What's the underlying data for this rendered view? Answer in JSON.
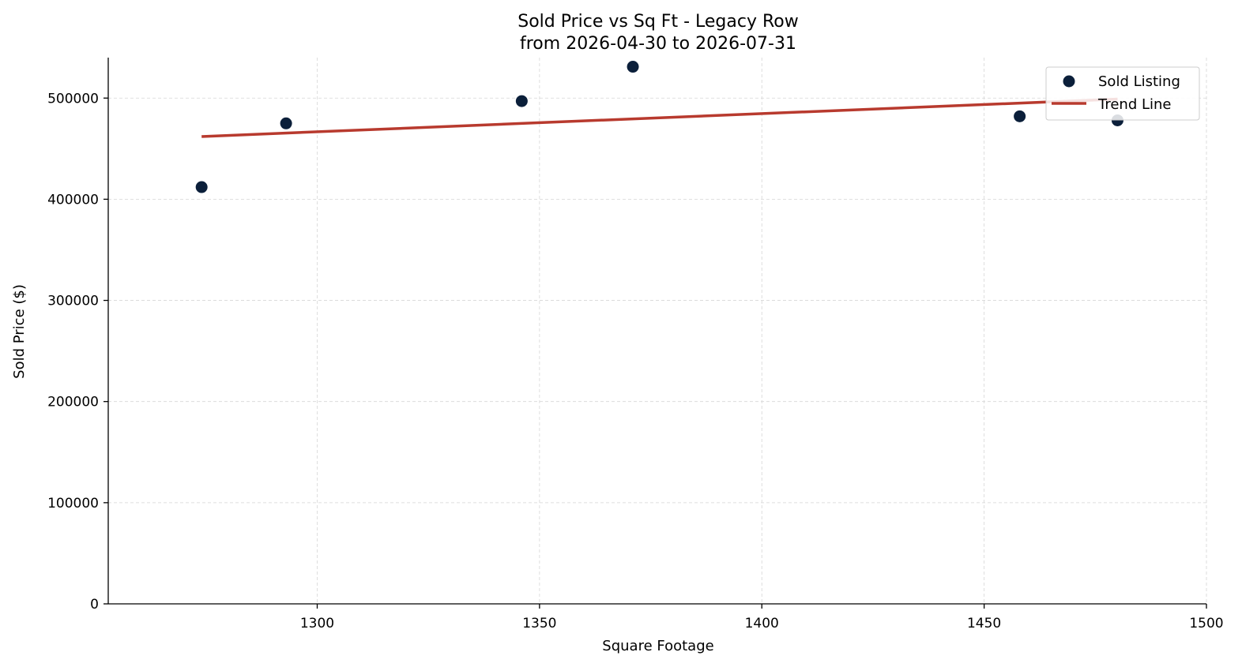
{
  "chart_data": {
    "type": "scatter",
    "title": "Sold Price vs Sq Ft - Legacy Row",
    "subtitle": "from 2026-04-30 to 2026-07-31",
    "xlabel": "Square Footage",
    "ylabel": "Sold Price ($)",
    "xlim": [
      1253,
      1500
    ],
    "ylim": [
      0,
      540000
    ],
    "xticks": [
      1300,
      1350,
      1400,
      1450,
      1500
    ],
    "yticks": [
      0,
      100000,
      200000,
      300000,
      400000,
      500000
    ],
    "grid": true,
    "legend_position": "top-right",
    "series": [
      {
        "name": "Sold Listing",
        "kind": "scatter",
        "color": "#0b1f3a",
        "points": [
          {
            "x": 1274,
            "y": 412000
          },
          {
            "x": 1293,
            "y": 475000
          },
          {
            "x": 1346,
            "y": 497000
          },
          {
            "x": 1371,
            "y": 531000
          },
          {
            "x": 1458,
            "y": 482000
          },
          {
            "x": 1480,
            "y": 478000
          }
        ]
      },
      {
        "name": "Trend Line",
        "kind": "line",
        "color": "#b83a2e",
        "points": [
          {
            "x": 1274,
            "y": 462000
          },
          {
            "x": 1480,
            "y": 499000
          }
        ]
      }
    ]
  }
}
